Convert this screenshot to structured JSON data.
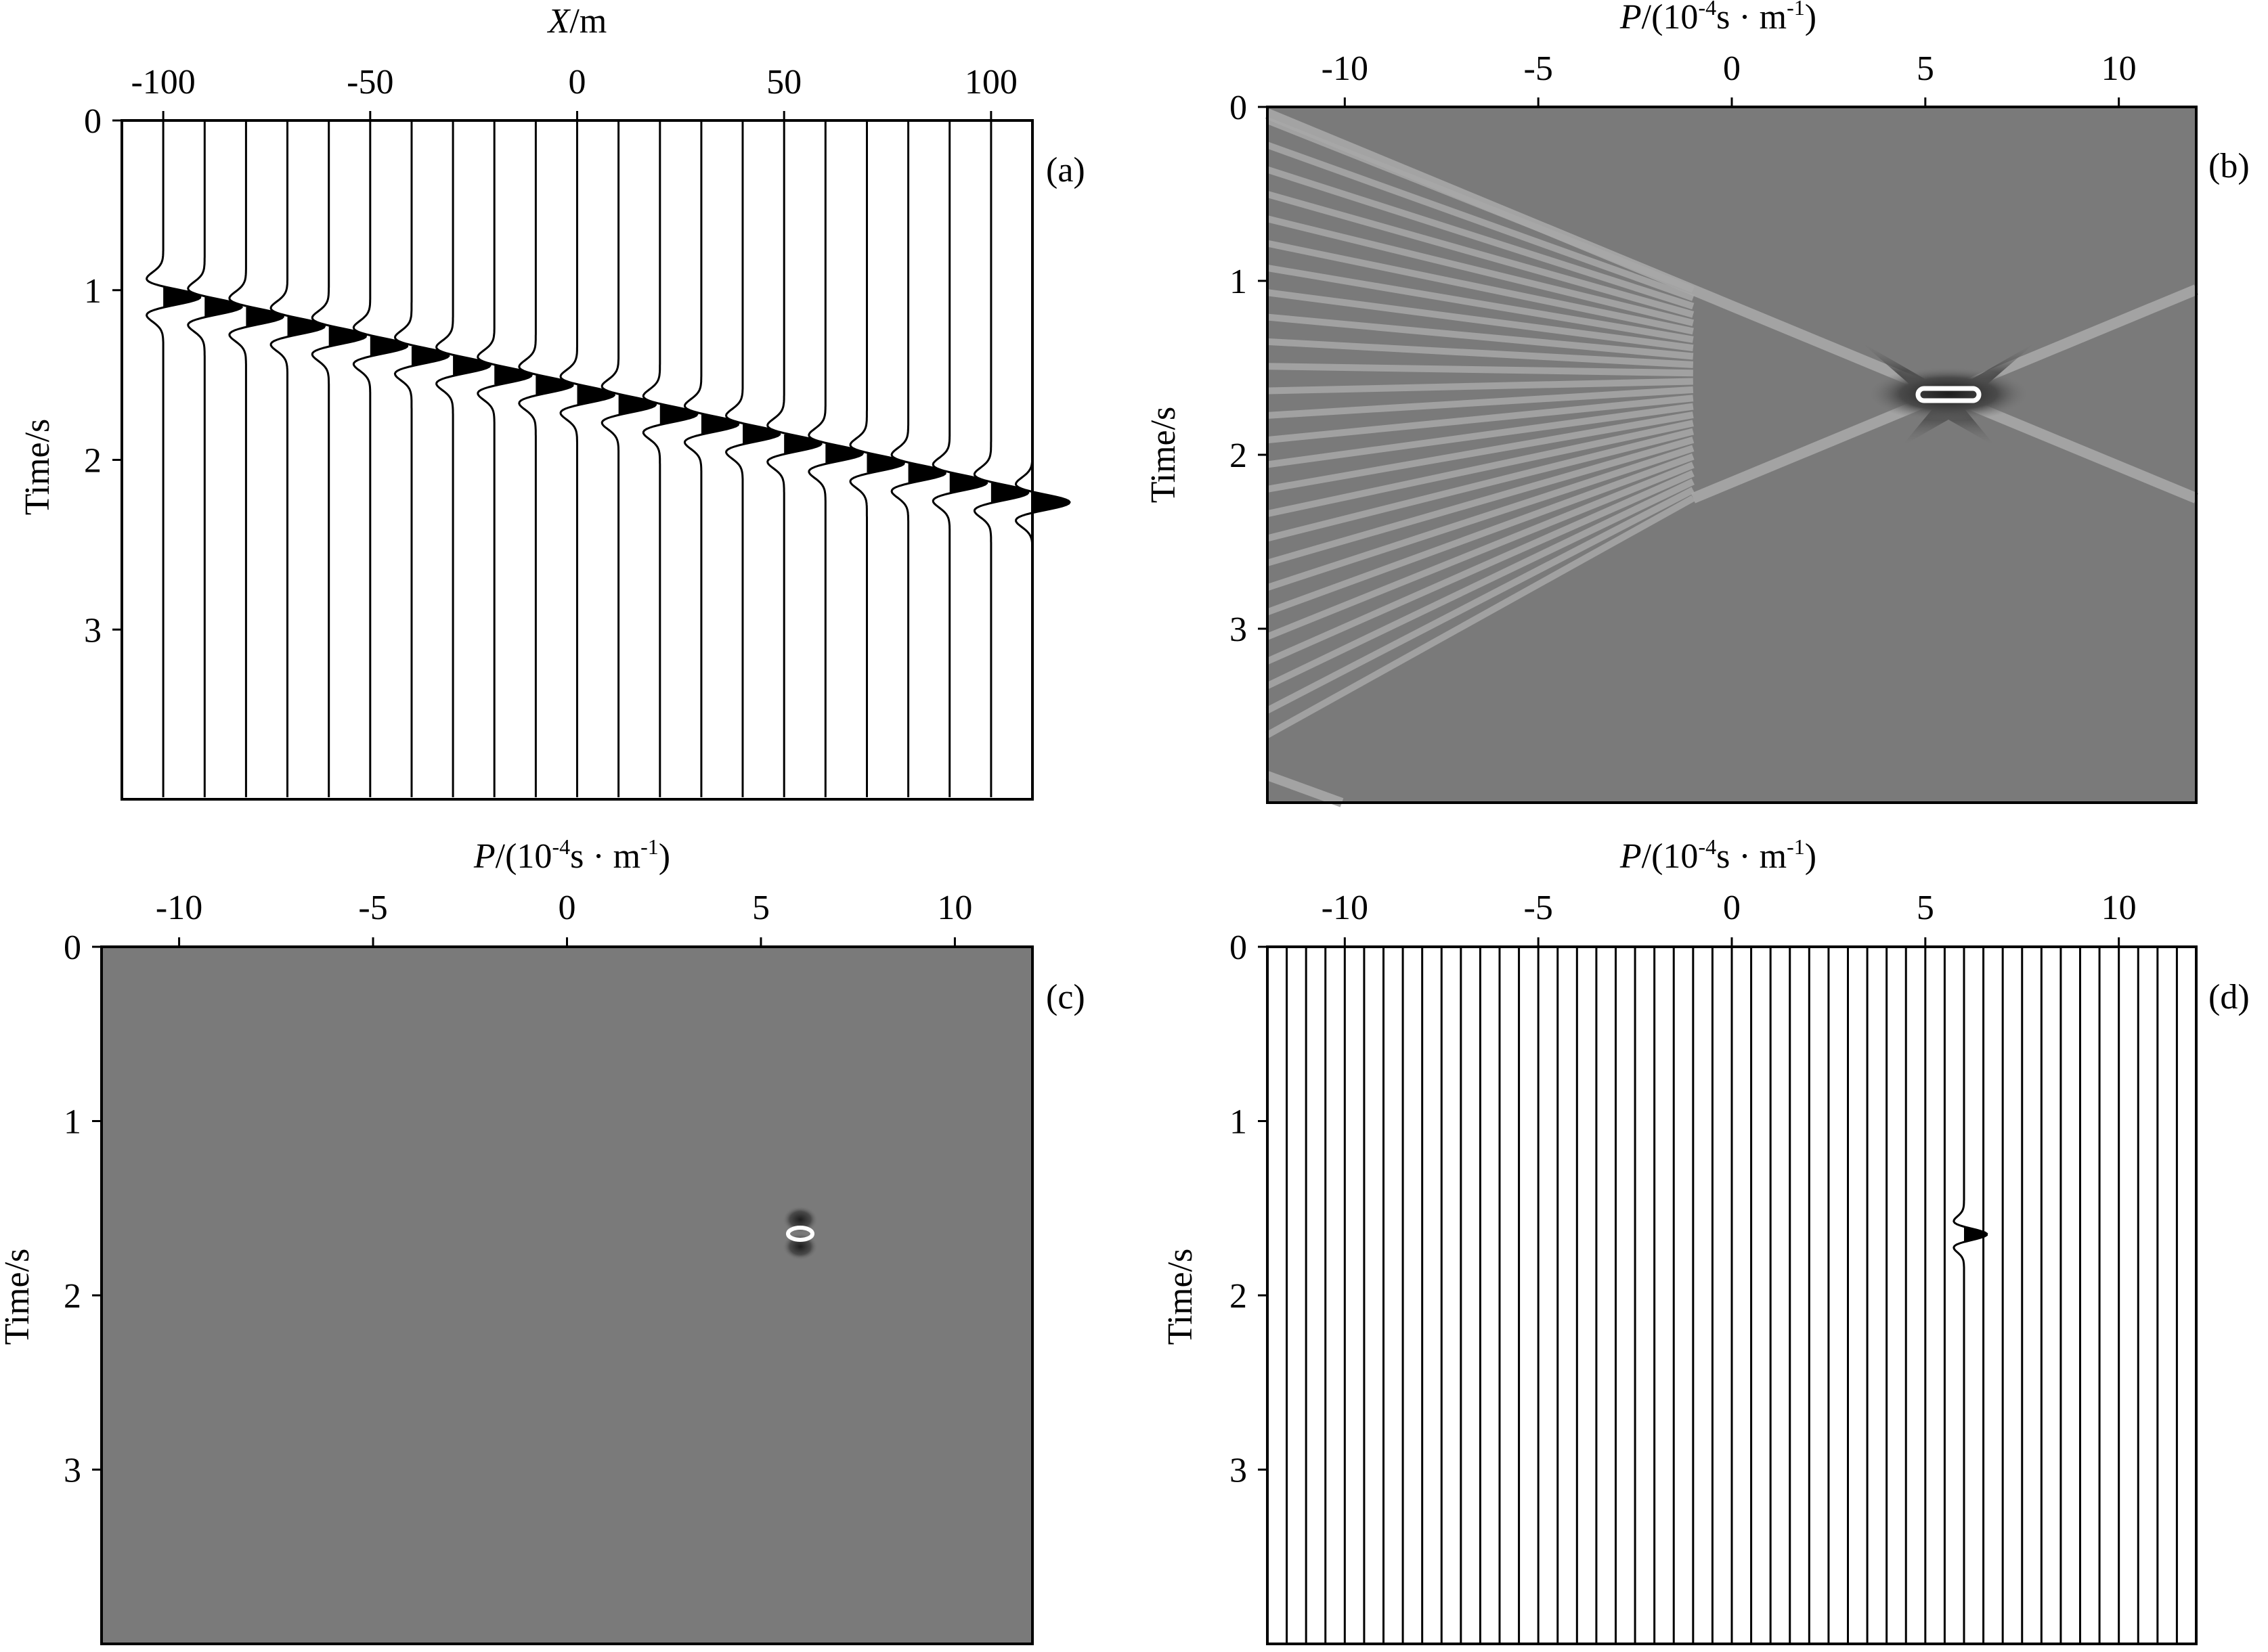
{
  "colors": {
    "ink": "#000000",
    "paper": "#ffffff",
    "image_background": "#7a7a7a",
    "band_light": "#a8a8a8",
    "peak_white": "#ffffff",
    "peak_dark": "#2a2a2a"
  },
  "chart_data": [
    {
      "panel": "a",
      "type": "wiggle",
      "panel_label": "(a)",
      "xlabel": {
        "italic": "X",
        "rest": "/m"
      },
      "ylabel": "Time/s",
      "xlim": [
        -110,
        110
      ],
      "ylim": [
        0,
        4
      ],
      "x_axis_position": "top",
      "y_axis_reversed": true,
      "xticks": [
        -100,
        -50,
        0,
        50,
        100
      ],
      "xtick_labels": [
        "-100",
        "-50",
        "0",
        "50",
        "100"
      ],
      "yticks": [
        0,
        1,
        2,
        3
      ],
      "ytick_labels": [
        "0",
        "1",
        "2",
        "3"
      ],
      "grid": false,
      "traces": {
        "offsets": [
          -100,
          -90,
          -80,
          -70,
          -60,
          -50,
          -40,
          -30,
          -20,
          -10,
          0,
          10,
          20,
          30,
          40,
          50,
          60,
          70,
          80,
          90,
          100,
          110
        ],
        "event_time_at_x_min": 1.04,
        "event_time_at_x_max": 2.25,
        "slope_s_per_m": 0.0055,
        "wavelet": "ricker"
      }
    },
    {
      "panel": "b",
      "type": "heatmap",
      "panel_label": "(b)",
      "xlabel": {
        "italic": "P",
        "pre": "/(10",
        "sup1": "-4",
        "mid": "s · m",
        "sup2": "-1",
        "post": ")"
      },
      "ylabel": "Time/s",
      "xlim": [
        -12,
        12
      ],
      "ylim": [
        0,
        4
      ],
      "x_axis_position": "top",
      "y_axis_reversed": true,
      "xticks": [
        -10,
        -5,
        0,
        5,
        10
      ],
      "xtick_labels": [
        "-10",
        "-5",
        "0",
        "5",
        "10"
      ],
      "yticks": [
        0,
        1,
        2,
        3
      ],
      "ytick_labels": [
        "0",
        "1",
        "2",
        "3"
      ],
      "grid": false,
      "focus": {
        "p": 6,
        "t": 1.65
      },
      "description_features": [
        "X-shaped smear through focus",
        "aliasing fan for p < -1"
      ]
    },
    {
      "panel": "c",
      "type": "heatmap",
      "panel_label": "(c)",
      "xlabel": {
        "italic": "P",
        "pre": "/(10",
        "sup1": "-4",
        "mid": "s · m",
        "sup2": "-1",
        "post": ")"
      },
      "ylabel": "Time/s",
      "xlim": [
        -12,
        12
      ],
      "ylim": [
        0,
        4
      ],
      "x_axis_position": "top",
      "y_axis_reversed": true,
      "xticks": [
        -10,
        -5,
        0,
        5,
        10
      ],
      "xtick_labels": [
        "-10",
        "-5",
        "0",
        "5",
        "10"
      ],
      "yticks": [
        0,
        1,
        2,
        3
      ],
      "ytick_labels": [
        "0",
        "1",
        "2",
        "3"
      ],
      "grid": false,
      "focus": {
        "p": 6,
        "t": 1.65
      }
    },
    {
      "panel": "d",
      "type": "wiggle",
      "panel_label": "(d)",
      "xlabel": {
        "italic": "P",
        "pre": "/(10",
        "sup1": "-4",
        "mid": "s · m",
        "sup2": "-1",
        "post": ")"
      },
      "ylabel": "Time/s",
      "xlim": [
        -12,
        12
      ],
      "ylim": [
        0,
        4
      ],
      "x_axis_position": "top",
      "y_axis_reversed": true,
      "xticks": [
        -10,
        -5,
        0,
        5,
        10
      ],
      "xtick_labels": [
        "-10",
        "-5",
        "0",
        "5",
        "10"
      ],
      "yticks": [
        0,
        1,
        2,
        3
      ],
      "ytick_labels": [
        "0",
        "1",
        "2",
        "3"
      ],
      "grid": false,
      "traces": {
        "p_start": -12,
        "p_end": 12,
        "p_step": 0.5,
        "event_p": 6,
        "event_t": 1.65,
        "wavelet": "ricker"
      }
    }
  ]
}
